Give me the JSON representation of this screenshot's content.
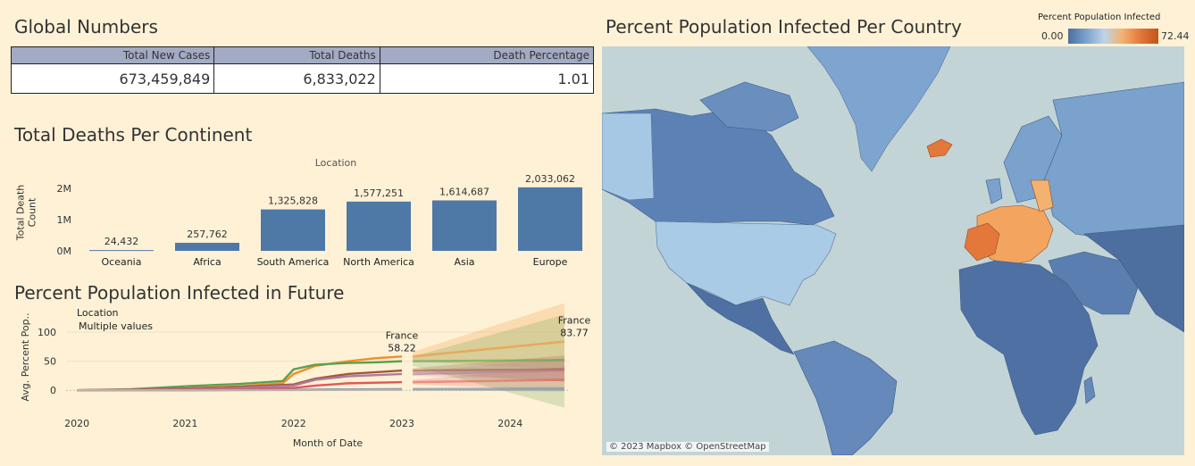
{
  "global_numbers": {
    "title": "Global Numbers",
    "headers": [
      "Total New Cases",
      "Total Deaths",
      "Death Percentage"
    ],
    "values": [
      "673,459,849",
      "6,833,022",
      "1.01"
    ]
  },
  "deaths_title": "Total Deaths Per Continent",
  "future_title": "Percent Population Infected in Future",
  "map": {
    "title": "Percent Population Infected Per Country",
    "legend_title": "Percent Population Infected",
    "legend_min": "0.00",
    "legend_max": "72.44",
    "attribution": "© 2023 Mapbox © OpenStreetMap"
  },
  "chart_data": [
    {
      "type": "bar",
      "title": "Total Deaths Per Continent",
      "xlabel": "Location",
      "ylabel": "Total Death Count",
      "categories": [
        "Oceania",
        "Africa",
        "South America",
        "North America",
        "Asia",
        "Europe"
      ],
      "values": [
        24432,
        257762,
        1325828,
        1577251,
        1614687,
        2033062
      ],
      "value_labels": [
        "24,432",
        "257,762",
        "1,325,828",
        "1,577,251",
        "1,614,687",
        "2,033,062"
      ],
      "yticks": [
        0,
        1000000,
        2000000
      ],
      "ytick_labels": [
        "0M",
        "1M",
        "2M"
      ],
      "ylim": [
        0,
        2200000
      ],
      "color": "#4e79a7"
    },
    {
      "type": "line",
      "title": "Percent Population Infected in Future",
      "xlabel": "Month of Date",
      "ylabel": "Avg. Percent Pop..",
      "legend_title": "Location",
      "legend_value": "Multiple values",
      "xticks": [
        2020,
        2021,
        2022,
        2023,
        2024
      ],
      "xtick_labels": [
        "2020",
        "2021",
        "2022",
        "2023",
        "2024"
      ],
      "xlim": [
        2019.9,
        2024.55
      ],
      "yticks": [
        0,
        50,
        100
      ],
      "ytick_labels": [
        "0",
        "50",
        "100"
      ],
      "ylim": [
        -35,
        140
      ],
      "annotations": [
        {
          "label": "France",
          "value": "58.22",
          "x": 2023.0,
          "y": 58.22
        },
        {
          "label": "France",
          "value": "83.77",
          "x": 2024.55,
          "y": 83.77
        }
      ],
      "series": [
        {
          "color": "#f28e2b",
          "x": [
            2020.0,
            2020.5,
            2021.0,
            2021.5,
            2021.9,
            2022.0,
            2022.2,
            2022.5,
            2022.75,
            2023.0
          ],
          "y": [
            0,
            1,
            3,
            7,
            12,
            28,
            42,
            50,
            55,
            58.22
          ],
          "forecast": [
            58.22,
            83.77
          ],
          "band": [
            [
              50,
              66
            ],
            [
              35,
              150
            ]
          ]
        },
        {
          "color": "#59a14f",
          "x": [
            2020.0,
            2020.5,
            2021.0,
            2021.5,
            2021.9,
            2022.0,
            2022.2,
            2022.5,
            2022.75,
            2023.0
          ],
          "y": [
            0,
            2,
            7,
            11,
            16,
            36,
            44,
            47,
            48,
            50
          ],
          "forecast": [
            50,
            52
          ],
          "band": [
            [
              42,
              58
            ],
            [
              -30,
              130
            ]
          ]
        },
        {
          "color": "#a05a3a",
          "x": [
            2020.0,
            2020.5,
            2021.0,
            2021.5,
            2022.0,
            2022.2,
            2022.5,
            2023.0
          ],
          "y": [
            0,
            1,
            3,
            6,
            10,
            20,
            28,
            34
          ],
          "forecast": [
            34,
            36
          ],
          "band": [
            [
              30,
              38
            ],
            [
              15,
              60
            ]
          ]
        },
        {
          "color": "#b07aa1",
          "x": [
            2020.0,
            2020.5,
            2021.0,
            2021.5,
            2022.0,
            2022.2,
            2022.5,
            2023.0
          ],
          "y": [
            0,
            1,
            2,
            4,
            8,
            18,
            24,
            28
          ],
          "forecast": [
            28,
            34
          ],
          "band": [
            [
              25,
              32
            ],
            [
              15,
              55
            ]
          ]
        },
        {
          "color": "#e15759",
          "x": [
            2020.0,
            2021.0,
            2021.5,
            2022.0,
            2022.2,
            2022.5,
            2023.0
          ],
          "y": [
            0,
            1,
            2,
            4,
            8,
            12,
            14
          ],
          "forecast": [
            14,
            18
          ],
          "band": [
            [
              10,
              18
            ],
            [
              0,
              40
            ]
          ]
        },
        {
          "color": "#4e79a7",
          "x": [
            2020.0,
            2021.0,
            2022.0,
            2023.0
          ],
          "y": [
            0,
            0,
            1,
            2
          ],
          "forecast": [
            2,
            2
          ],
          "band": [
            [
              0,
              4
            ],
            [
              -2,
              6
            ]
          ]
        },
        {
          "color": "#bab0ac",
          "x": [
            2020.0,
            2021.0,
            2022.0,
            2023.0
          ],
          "y": [
            0,
            0,
            0.5,
            1
          ],
          "forecast": [
            1,
            1
          ],
          "band": [
            [
              0,
              2
            ],
            [
              -1,
              3
            ]
          ]
        }
      ]
    }
  ]
}
